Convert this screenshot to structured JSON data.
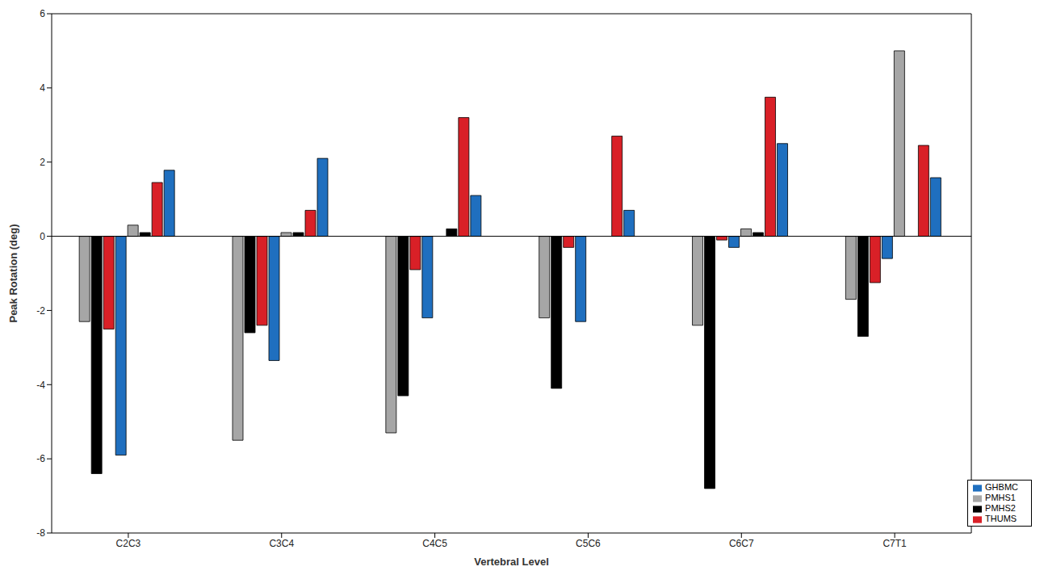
{
  "chart_data": {
    "type": "bar",
    "x_label": "Vertebral Level",
    "y_label": "Peak Rotation (deg)",
    "categories": [
      "C2C3",
      "C3C4",
      "C4C5",
      "C5C6",
      "C6C7",
      "C7T1"
    ],
    "series": [
      {
        "name": "PMHS1",
        "color": "#a6a6a6",
        "values": [
          -2.3,
          -5.5,
          -5.3,
          -2.2,
          -2.4,
          -1.7
        ],
        "positive_values": [
          0.3,
          0.1,
          0,
          0,
          0.2,
          5.0
        ]
      },
      {
        "name": "PMHS2",
        "color": "#000000",
        "values": [
          -6.4,
          -2.6,
          -4.3,
          -4.1,
          -6.8,
          -2.7
        ],
        "positive_values": [
          0.1,
          0.1,
          0.2,
          0,
          0.1,
          0
        ]
      },
      {
        "name": "THUMS",
        "color": "#d92027",
        "values": [
          -2.5,
          -2.4,
          -0.9,
          -0.3,
          -0.1,
          -1.25
        ],
        "positive_values": [
          1.45,
          0.7,
          3.2,
          2.7,
          3.75,
          2.45
        ]
      },
      {
        "name": "GHBMC",
        "color": "#1f6fbf",
        "values": [
          -5.9,
          -3.35,
          -2.2,
          -2.3,
          -0.3,
          -0.6
        ],
        "positive_values": [
          1.78,
          2.1,
          1.1,
          0.7,
          2.5,
          1.58
        ]
      }
    ],
    "ylim": [
      -8,
      6
    ],
    "yticks": [
      -8,
      -6,
      -4,
      -2,
      0,
      2,
      4,
      6
    ],
    "legend": "lower right",
    "grid": false
  }
}
